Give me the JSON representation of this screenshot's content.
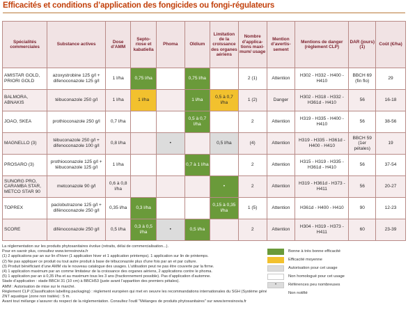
{
  "title": "Efficacités et conditions d’application des fongicides ou fongi-régulateurs",
  "columns": [
    "Spécialités commerciales",
    "Substance actives",
    "Dose d’AMM",
    "Septo-riose et kabatiella",
    "Phoma",
    "Oïdium",
    "Limitation de la croissance des organes aériens",
    "Nombre d’applica-tions maxi-mum/ usage",
    "Mention d’avertis-sement",
    "Mentions de danger (règlement CLP)",
    "DAR (jours) (1)",
    "Coût (€/ha)"
  ],
  "rows": [
    {
      "name": "AMISTAR GOLD, PRIORI GOLD",
      "subst": "azoxystrobine 125 g/l + difenoconazole 125 g/l",
      "dose": "1 l/ha",
      "septo": "0,75 l/ha",
      "phoma": "",
      "oidium": "0,75 l/ha",
      "limit": "",
      "nb": "2 (1)",
      "mention": "Attention",
      "danger": "H302 - H332 - H400 - H410",
      "dar": "BBCH 69 (fin flo)",
      "cout": "29"
    },
    {
      "name": "BALMORA, ABNAKIS",
      "subst": "tébuconazole 250 g/l",
      "dose": "1 l/ha",
      "septo": "1 l/ha",
      "phoma": "",
      "oidium": "1 l/ha",
      "limit": "0,5 à 0,7 l/ha",
      "nb": "1 (2)",
      "mention": "Danger",
      "danger": "H302 - H318 - H332 - H361d - H410",
      "dar": "56",
      "cout": "16-18"
    },
    {
      "name": "JOAO, SKEA",
      "subst": "prothioconazole 250 g/l",
      "dose": "0,7 l/ha",
      "septo": "",
      "phoma": "",
      "oidium": "0,5 à 0,7 l/ha",
      "limit": "",
      "nb": "2",
      "mention": "Attention",
      "danger": "H319 - H335 - H400 - H410",
      "dar": "56",
      "cout": "38-56"
    },
    {
      "name": "MAGNELLO (3)",
      "subst": "tébuconazole 250 g/l + difenoconazole 100 g/l",
      "dose": "0,8 l/ha",
      "septo": "",
      "phoma": "•",
      "oidium": "",
      "limit": "0,5 l/ha",
      "nb": "(4)",
      "mention": "Attention",
      "danger": "H319 - H335 - H361d - H400 - H410",
      "dar": "BBCH 59 (1er pétales)",
      "cout": "19"
    },
    {
      "name": "PROSARO (3)",
      "subst": "prothioconazole 125 g/l + tébuconazole 125 g/l",
      "dose": "1 l/ha",
      "septo": "",
      "phoma": "",
      "oidium": "0,7 à 1 l/ha",
      "limit": "",
      "nb": "2",
      "mention": "Attention",
      "danger": "H315 - H319 - H335 - H361d - H410",
      "dar": "56",
      "cout": "37-54"
    },
    {
      "name": "SUNORG PRO, CARAMBA STAR, METCO STAR 90",
      "subst": "metconazole 90 g/l",
      "dose": "0,6 à 0,8 l/ha",
      "septo": "",
      "phoma": "",
      "oidium": "",
      "limit": "•",
      "nb": "2",
      "mention": "Attention",
      "danger": "H319 - H361d - H373 - H411",
      "dar": "56",
      "cout": "20-27"
    },
    {
      "name": "TOPREX",
      "subst": "paclobutrazone 125 g/l + difénoconazole 250 g/l",
      "dose": "0,35 l/ha",
      "septo": "0,3 l/ha",
      "phoma": "",
      "oidium": "",
      "limit": "0,15 à 0,35 l/ha",
      "nb": "1 (5)",
      "mention": "Attention",
      "danger": "H361d - H400 - H410",
      "dar": "90",
      "cout": "12-23"
    },
    {
      "name": "SCORE",
      "subst": "difénoconazole 250 g/l",
      "dose": "0,5 l/ha",
      "septo": "0,3 à 0,5 l/ha",
      "phoma": "•",
      "oidium": "0,5 l/ha",
      "limit": "",
      "nb": "2",
      "mention": "Attention",
      "danger": "H304 - H319 - H373 - H411",
      "dar": "60",
      "cout": "23-39"
    }
  ],
  "notes": [
    "La réglementation sur les produits phytosanitaires évolue (retraits, délai de commercialisation...).",
    "Pour en savoir plus, consultez www.terresinovia.fr",
    "(1) 2 applications par an sur lin d’hiver (1 application hiver et 1 application printemps). 1 application sur lin de printemps.",
    "(2) Ne pas appliquer ce produit ou tout autre produit à base de tébuconazole plus d’une fois par an et par culture.",
    "(3) Produit bénéficiant d’une AMM via le nouveau catalogue des usages. L’utilisation peut ne pas être couverte par la firme.",
    "(4) 1 application maximum par an comme limitateur de la croissance des organes aériens, 2 applications contre le phoma.",
    "(5) 1 application par an à 0,35 l/ha et au maximum tous les 3 ans (fractionnement possible). Pas d’application d’automne.",
    "Stade d’application : stade BBCH 31 (10 cm) à BBCH53 (juste avant l’apparition des premiers pétales).",
    "AMM : Autorisation de mise sur le marché.",
    "Règlement CLP (Classification labelling packaging) : règlement européen qui met en oeuvre les recommandations internationales du SGH (Système général harmonisé).",
    "ZNT aquatique (zone non traitée) : 5 m.",
    "Avant tout mélange s’assurer du respect de la réglementation. Consultez l’outil \"Mélanges de produits phytosanitaires\" sur www.terresinovia.fr"
  ],
  "legend": [
    {
      "kind": "green",
      "label": "Bonne à très bonne efficacité"
    },
    {
      "kind": "yellow",
      "label": "Efficacité moyenne"
    },
    {
      "kind": "grey",
      "label": "Autorisation pour cet usage"
    },
    {
      "kind": "white",
      "label": "Non homologué pour cet usage"
    },
    {
      "kind": "dot",
      "label": "Références peu nombreuses"
    },
    {
      "kind": "plain",
      "label": "Non notifié"
    }
  ],
  "colors": {
    "green": "#6a9a3a",
    "yellow": "#f2c12e",
    "grey": "#dcdcdc",
    "title": "#c2410c"
  }
}
